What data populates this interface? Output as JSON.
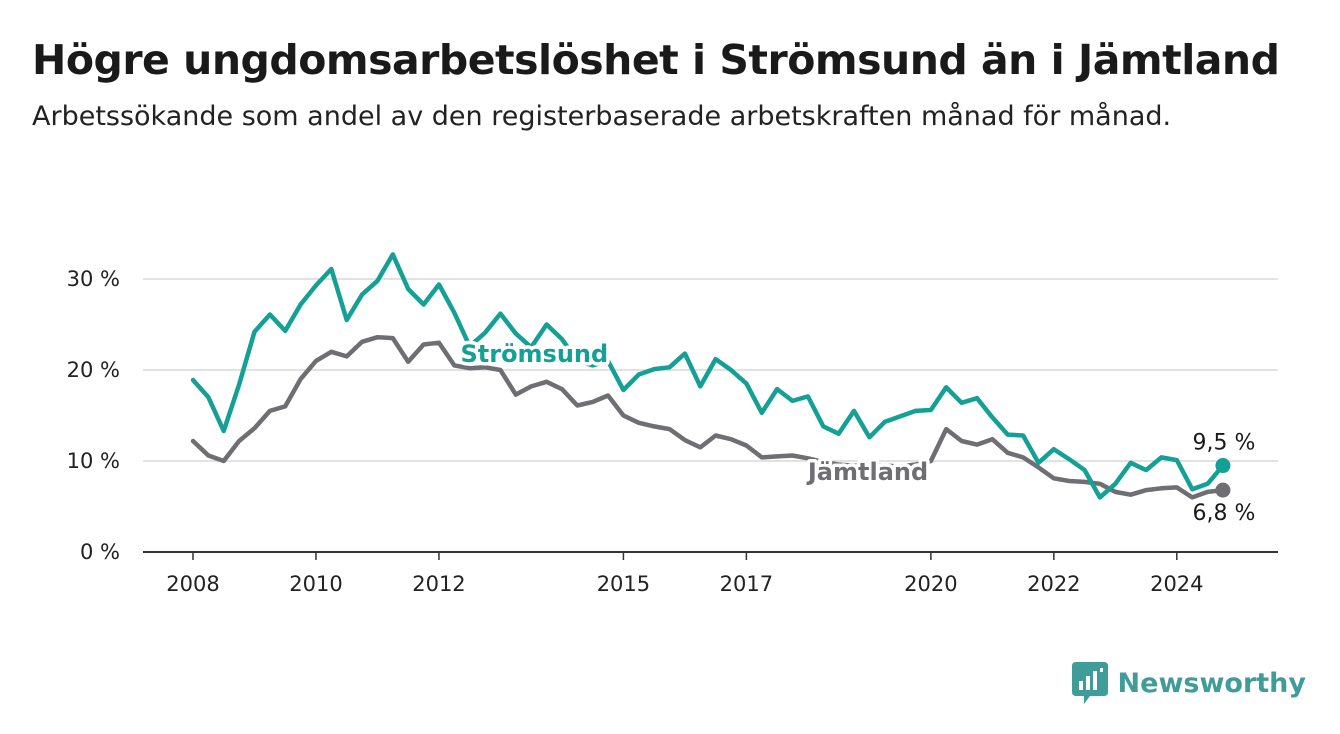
{
  "header": {
    "title": "Högre ungdomsarbetslöshet i Strömsund än i Jämtland",
    "subtitle": "Arbetssökande som andel av den registerbaserade arbetskraften månad för månad."
  },
  "brand": {
    "name": "Newsworthy",
    "icon": "newsworthy-logo-icon",
    "color": "#3f9c98"
  },
  "chart_data": {
    "type": "line",
    "title": "Högre ungdomsarbetslöshet i Strömsund än i Jämtland",
    "subtitle": "Arbetssökande som andel av den registerbaserade arbetskraften månad för månad.",
    "xlim": [
      2008,
      2025
    ],
    "ylim": [
      0,
      33
    ],
    "x_ticks": [
      2008,
      2010,
      2012,
      2015,
      2017,
      2020,
      2022,
      2024
    ],
    "x_tick_labels": [
      "2008",
      "2010",
      "2012",
      "2015",
      "2017",
      "2020",
      "2022",
      "2024"
    ],
    "y_ticks": [
      0,
      10,
      20,
      30
    ],
    "y_tick_labels": [
      "0 %",
      "10 %",
      "20 %",
      "30 %"
    ],
    "grid": "horizontal",
    "legend": "inline labels",
    "series": [
      {
        "name": "Strömsund",
        "color": "#14a095",
        "end_label": "9,5 %",
        "x": [
          2008.0,
          2008.25,
          2008.5,
          2008.75,
          2009.0,
          2009.25,
          2009.5,
          2009.75,
          2010.0,
          2010.25,
          2010.5,
          2010.75,
          2011.0,
          2011.25,
          2011.5,
          2011.75,
          2012.0,
          2012.25,
          2012.5,
          2012.75,
          2013.0,
          2013.25,
          2013.5,
          2013.75,
          2014.0,
          2014.25,
          2014.5,
          2014.75,
          2015.0,
          2015.25,
          2015.5,
          2015.75,
          2016.0,
          2016.25,
          2016.5,
          2016.75,
          2017.0,
          2017.25,
          2017.5,
          2017.75,
          2018.0,
          2018.25,
          2018.5,
          2018.75,
          2019.0,
          2019.25,
          2019.5,
          2019.75,
          2020.0,
          2020.25,
          2020.5,
          2020.75,
          2021.0,
          2021.25,
          2021.5,
          2021.75,
          2022.0,
          2022.25,
          2022.5,
          2022.75,
          2023.0,
          2023.25,
          2023.5,
          2023.75,
          2024.0,
          2024.25,
          2024.5,
          2024.75
        ],
        "y": [
          18.9,
          17.0,
          13.3,
          18.4,
          24.2,
          26.1,
          24.3,
          27.2,
          29.3,
          31.1,
          25.5,
          28.3,
          29.8,
          32.7,
          28.9,
          27.2,
          29.4,
          26.3,
          22.6,
          24.1,
          26.2,
          24.0,
          22.5,
          25.0,
          23.4,
          21.0,
          20.5,
          21.0,
          17.8,
          19.5,
          20.1,
          20.3,
          21.8,
          18.2,
          21.2,
          20.0,
          18.5,
          15.3,
          17.9,
          16.6,
          17.1,
          13.8,
          13.0,
          15.5,
          12.6,
          14.3,
          14.9,
          15.5,
          15.6,
          18.1,
          16.4,
          16.9,
          14.8,
          12.9,
          12.8,
          9.8,
          11.3,
          10.2,
          9.0,
          6.0,
          7.5,
          9.8,
          9.0,
          10.4,
          10.1,
          6.9,
          7.5,
          9.5
        ]
      },
      {
        "name": "Jämtland",
        "color": "#6e6e73",
        "end_label": "6,8 %",
        "x": [
          2008.0,
          2008.25,
          2008.5,
          2008.75,
          2009.0,
          2009.25,
          2009.5,
          2009.75,
          2010.0,
          2010.25,
          2010.5,
          2010.75,
          2011.0,
          2011.25,
          2011.5,
          2011.75,
          2012.0,
          2012.25,
          2012.5,
          2012.75,
          2013.0,
          2013.25,
          2013.5,
          2013.75,
          2014.0,
          2014.25,
          2014.5,
          2014.75,
          2015.0,
          2015.25,
          2015.5,
          2015.75,
          2016.0,
          2016.25,
          2016.5,
          2016.75,
          2017.0,
          2017.25,
          2017.5,
          2017.75,
          2018.0,
          2018.25,
          2018.5,
          2018.75,
          2019.0,
          2019.25,
          2019.5,
          2019.75,
          2020.0,
          2020.25,
          2020.5,
          2020.75,
          2021.0,
          2021.25,
          2021.5,
          2021.75,
          2022.0,
          2022.25,
          2022.5,
          2022.75,
          2023.0,
          2023.25,
          2023.5,
          2023.75,
          2024.0,
          2024.25,
          2024.5,
          2024.75
        ],
        "y": [
          12.2,
          10.6,
          10.0,
          12.2,
          13.6,
          15.5,
          16.0,
          19.0,
          21.0,
          22.0,
          21.5,
          23.1,
          23.6,
          23.5,
          20.9,
          22.8,
          23.0,
          20.5,
          20.2,
          20.3,
          20.0,
          17.3,
          18.2,
          18.7,
          17.9,
          16.1,
          16.5,
          17.2,
          15.0,
          14.2,
          13.8,
          13.5,
          12.3,
          11.5,
          12.8,
          12.4,
          11.7,
          10.4,
          10.5,
          10.6,
          10.3,
          9.9,
          9.6,
          9.5,
          9.4,
          9.5,
          9.4,
          9.6,
          10.0,
          13.5,
          12.2,
          11.8,
          12.4,
          10.9,
          10.4,
          9.3,
          8.1,
          7.8,
          7.7,
          7.5,
          6.6,
          6.3,
          6.8,
          7.0,
          7.1,
          6.0,
          6.6,
          6.8
        ]
      }
    ]
  }
}
